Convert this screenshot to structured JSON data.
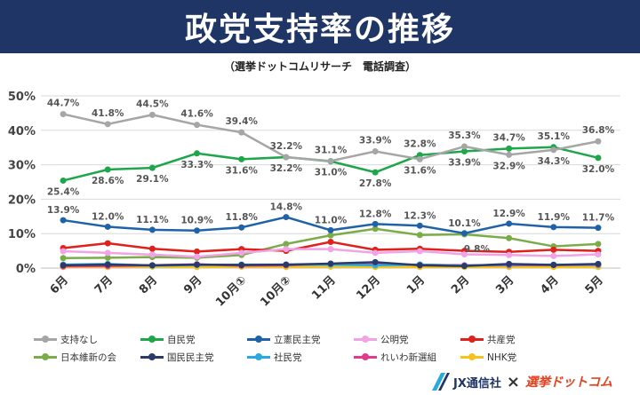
{
  "header": {
    "title": "政党支持率の推移",
    "subtitle": "（選挙ドットコムリサーチ　電話調査）"
  },
  "footer": {
    "company": "JX通信社",
    "separator": "×",
    "partner": "選挙ドットコム"
  },
  "chart_data": {
    "type": "line",
    "title": "",
    "xlabel": "",
    "ylabel": "",
    "ylim": [
      0,
      50
    ],
    "yticks": [
      "0%",
      "10%",
      "20%",
      "30%",
      "40%",
      "50%"
    ],
    "grid": true,
    "legend_position": "bottom",
    "categories": [
      "6月",
      "7月",
      "8月",
      "9月",
      "10月①",
      "10月②",
      "11月",
      "12月",
      "1月",
      "2月",
      "3月",
      "4月",
      "5月"
    ],
    "series": [
      {
        "name": "支持なし",
        "color": "#a6a6a6",
        "values": [
          44.7,
          41.8,
          44.5,
          41.6,
          39.4,
          32.2,
          31.1,
          33.9,
          31.6,
          35.3,
          32.9,
          34.3,
          36.8
        ],
        "labels": [
          "44.7%",
          "41.8%",
          "44.5%",
          "41.6%",
          "39.4%",
          "32.2%",
          "31.1%",
          "33.9%",
          "31.6%",
          "35.3%",
          "32.9%",
          "34.3%",
          "36.8%"
        ]
      },
      {
        "name": "自民党",
        "color": "#1ea64b",
        "values": [
          25.4,
          28.6,
          29.1,
          33.3,
          31.6,
          32.2,
          31.0,
          27.8,
          32.8,
          33.9,
          34.7,
          35.1,
          32.0
        ],
        "labels": [
          "25.4%",
          "28.6%",
          "29.1%",
          "33.3%",
          "31.6%",
          "32.2%",
          "31.0%",
          "27.8%",
          "32.8%",
          "33.9%",
          "34.7%",
          "35.1%",
          "32.0%"
        ]
      },
      {
        "name": "立憲民主党",
        "color": "#1f62a8",
        "values": [
          13.9,
          12.0,
          11.1,
          10.9,
          11.8,
          14.8,
          11.0,
          12.8,
          12.3,
          10.1,
          12.9,
          11.9,
          11.7
        ],
        "labels": [
          "13.9%",
          "12.0%",
          "11.1%",
          "10.9%",
          "11.8%",
          "14.8%",
          "11.0%",
          "12.8%",
          "12.3%",
          "10.1%",
          "12.9%",
          "11.9%",
          "11.7%"
        ]
      },
      {
        "name": "公明党",
        "color": "#f1a3e6",
        "values": [
          4.9,
          4.4,
          3.9,
          3.3,
          4.4,
          5.5,
          5.5,
          4.4,
          4.9,
          4.0,
          3.8,
          3.5,
          4.0
        ]
      },
      {
        "name": "共産党",
        "color": "#e0201b",
        "values": [
          5.8,
          7.2,
          5.6,
          4.8,
          5.5,
          5.0,
          7.6,
          5.3,
          5.6,
          5.0,
          4.7,
          5.3,
          5.0
        ]
      },
      {
        "name": "日本維新の会",
        "color": "#7aad4a",
        "values": [
          2.9,
          3.0,
          3.2,
          3.0,
          3.8,
          7.0,
          9.5,
          11.4,
          9.6,
          9.8,
          8.7,
          6.3,
          7.0
        ]
      },
      {
        "name": "国民民主党",
        "color": "#2b3a6b",
        "values": [
          0.8,
          1.0,
          0.8,
          1.0,
          0.9,
          1.0,
          1.3,
          1.7,
          0.8,
          0.6,
          1.2,
          0.9,
          1.2
        ]
      },
      {
        "name": "社民党",
        "color": "#2aa9df",
        "values": [
          1.0,
          1.2,
          0.7,
          0.9,
          1.0,
          1.0,
          1.0,
          0.8,
          1.0,
          0.7,
          1.0,
          1.0,
          1.0
        ]
      },
      {
        "name": "れいわ新選組",
        "color": "#e23a8c",
        "values": [
          0.5,
          0.6,
          0.8,
          1.1,
          0.7,
          0.8,
          1.2,
          1.0,
          1.0,
          0.8,
          0.8,
          0.9,
          0.9
        ]
      },
      {
        "name": "NHK党",
        "color": "#f5c31c",
        "values": [
          0.3,
          0.3,
          0.4,
          0.3,
          0.4,
          0.3,
          0.4,
          0.3,
          0.3,
          0.3,
          0.3,
          0.3,
          0.3
        ]
      }
    ],
    "annotations": [
      {
        "text": "9.8%",
        "series": "日本維新の会",
        "category": "2月"
      }
    ]
  }
}
